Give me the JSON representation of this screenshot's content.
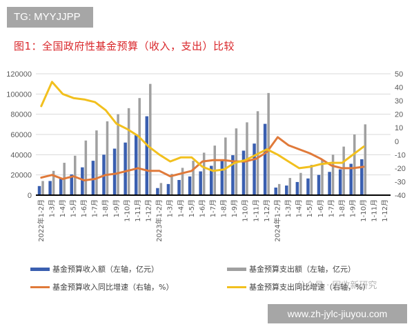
{
  "badge": {
    "text": "TG: MYYJJPP"
  },
  "title": "图1：全国政府性基金预算（收入，支出）比较",
  "legend": {
    "revenue": "基金预算收入额（左轴，亿元）",
    "expenditure": "基金预算支出额（左轴，亿元）",
    "revenue_yoy": "基金预算收入同比增速（右轴，%）",
    "expenditure_yoy": "基金预算支出同比增速（右轴，%）"
  },
  "watermark": {
    "url": "www.zh-jylc-jiuyou.com",
    "wechat": "公众号 · 固收新研究"
  },
  "colors": {
    "revenue": "#3a5fb0",
    "expenditure": "#a0a0a0",
    "revenue_yoy": "#e07a3a",
    "expenditure_yoy": "#f2c01e",
    "title": "#d9262a"
  },
  "chart_data": {
    "type": "bar+line",
    "title": "图1：全国政府性基金预算（收入，支出）比较",
    "xlabel": "",
    "ylabel_left": "亿元",
    "ylabel_right": "%",
    "ylim_left": [
      0,
      120000
    ],
    "ylim_right": [
      -40,
      50
    ],
    "yticks_left": [
      "0",
      "20000",
      "40000",
      "60000",
      "80000",
      "100000",
      "120000"
    ],
    "yticks_right": [
      "-40",
      "-30",
      "-20",
      "-10",
      "0",
      "10",
      "20",
      "30",
      "40",
      "50"
    ],
    "grid": true,
    "legend_position": "bottom",
    "categories": [
      "2022年1-2月",
      "1-3月",
      "1-4月",
      "1-5月",
      "1-6月",
      "1-7月",
      "1-8月",
      "1-9月",
      "1-10月",
      "1-11月",
      "1-12月",
      "2023年1-2月",
      "1-3月",
      "1-4月",
      "1-5月",
      "1-6月",
      "1-7月",
      "1-8月",
      "1-9月",
      "1-10月",
      "1-11月",
      "1-12月",
      "2024年1-2月",
      "1-3月",
      "1-4月",
      "1-5月",
      "1-6月",
      "1-7月",
      "1-8月",
      "1-9月",
      "1-10月",
      "1-11月",
      "1-12月"
    ],
    "series": [
      {
        "name": "基金预算收入额（左轴，亿元）",
        "type": "bar",
        "axis": "left",
        "values": [
          9000,
          14000,
          17000,
          20500,
          27500,
          34000,
          40000,
          46000,
          52000,
          59500,
          78000,
          7000,
          11000,
          15000,
          18500,
          23500,
          29000,
          35000,
          39500,
          44000,
          51000,
          70500,
          7500,
          9500,
          13000,
          16500,
          20000,
          23000,
          25500,
          31000,
          35500,
          null,
          null
        ]
      },
      {
        "name": "基金预算支出额（左轴，亿元）",
        "type": "bar",
        "axis": "left",
        "values": [
          14000,
          24000,
          32000,
          39000,
          54000,
          64000,
          73000,
          80000,
          86000,
          96000,
          110000,
          12000,
          21000,
          27000,
          34000,
          42000,
          49000,
          57000,
          66000,
          72000,
          83000,
          101000,
          11000,
          17000,
          22000,
          30000,
          35000,
          40000,
          48000,
          60000,
          70000,
          null,
          null
        ]
      },
      {
        "name": "基金预算收入同比增速（右轴，%）",
        "type": "line",
        "axis": "right",
        "values": [
          -27,
          -25,
          -28,
          -26,
          -29,
          -28,
          -25,
          -24,
          -22,
          -20,
          -22,
          -22,
          -26,
          -24,
          -22,
          -15,
          -14,
          -14,
          -15,
          -15,
          -13,
          -8,
          3,
          -3,
          -6,
          -9,
          -13,
          -18,
          -20,
          -20,
          -19,
          null,
          null
        ]
      },
      {
        "name": "基金预算支出同比增速（右轴，%）",
        "type": "line",
        "axis": "right",
        "values": [
          26,
          44,
          35,
          32,
          31,
          29,
          23,
          13,
          9,
          4,
          -4,
          -10,
          -15,
          -12,
          -12,
          -19,
          -22,
          -21,
          -16,
          -14,
          -10,
          -6,
          -10,
          -15,
          -20,
          -19,
          -17,
          -16,
          -16,
          -10,
          -4,
          null,
          null
        ]
      }
    ]
  }
}
